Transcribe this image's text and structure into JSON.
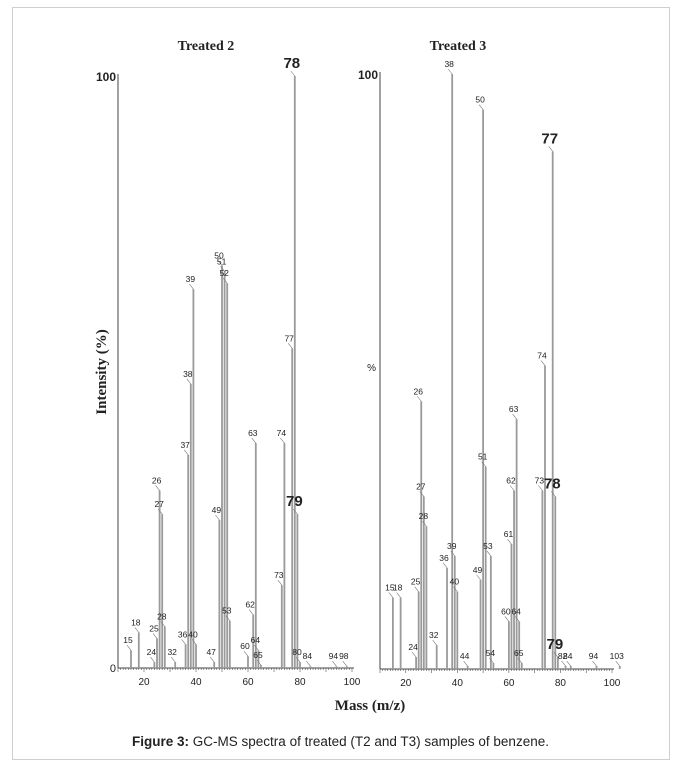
{
  "caption": {
    "prefix": "Figure 3:",
    "text": " GC-MS spectra of treated (T2 and T3) samples of benzene."
  },
  "chart_data": [
    {
      "type": "bar",
      "title": "Treated 2",
      "ylabel": "Intensity (%)",
      "xlabel": "",
      "xlim": [
        10,
        100
      ],
      "ylim": [
        0,
        100
      ],
      "x_ticks": [
        20,
        40,
        60,
        80,
        100
      ],
      "y_tick_labels": [
        "0",
        "100"
      ],
      "peaks": [
        {
          "mz": 15,
          "value": 3,
          "label": "15"
        },
        {
          "mz": 18,
          "value": 6,
          "label": "18"
        },
        {
          "mz": 24,
          "value": 1,
          "label": "24"
        },
        {
          "mz": 25,
          "value": 5,
          "label": "25"
        },
        {
          "mz": 26,
          "value": 30,
          "label": "26"
        },
        {
          "mz": 27,
          "value": 26,
          "label": "27"
        },
        {
          "mz": 28,
          "value": 7,
          "label": "28"
        },
        {
          "mz": 32,
          "value": 1,
          "label": "32"
        },
        {
          "mz": 36,
          "value": 4,
          "label": "36"
        },
        {
          "mz": 37,
          "value": 36,
          "label": "37"
        },
        {
          "mz": 38,
          "value": 48,
          "label": "38"
        },
        {
          "mz": 39,
          "value": 64,
          "label": "39"
        },
        {
          "mz": 40,
          "value": 4,
          "label": "40"
        },
        {
          "mz": 47,
          "value": 1,
          "label": "47"
        },
        {
          "mz": 49,
          "value": 25,
          "label": "49"
        },
        {
          "mz": 50,
          "value": 68,
          "label": "50"
        },
        {
          "mz": 51,
          "value": 67,
          "label": "51"
        },
        {
          "mz": 52,
          "value": 65,
          "label": "52"
        },
        {
          "mz": 53,
          "value": 8,
          "label": "53"
        },
        {
          "mz": 60,
          "value": 2,
          "label": "60"
        },
        {
          "mz": 62,
          "value": 9,
          "label": "62"
        },
        {
          "mz": 63,
          "value": 38,
          "label": "63"
        },
        {
          "mz": 64,
          "value": 3,
          "label": "64"
        },
        {
          "mz": 65,
          "value": 0.5,
          "label": "65"
        },
        {
          "mz": 73,
          "value": 14,
          "label": "73"
        },
        {
          "mz": 74,
          "value": 38,
          "label": "74"
        },
        {
          "mz": 77,
          "value": 54,
          "label": "77"
        },
        {
          "mz": 78,
          "value": 100,
          "label": "78",
          "emphasis": true
        },
        {
          "mz": 79,
          "value": 26,
          "label": "79",
          "emphasis": true
        },
        {
          "mz": 80,
          "value": 1,
          "label": "80"
        },
        {
          "mz": 84,
          "value": 0.3,
          "label": "84"
        },
        {
          "mz": 94,
          "value": 0.3,
          "label": "94"
        },
        {
          "mz": 98,
          "value": 0.3,
          "label": "98"
        }
      ]
    },
    {
      "type": "bar",
      "title": "Treated 3",
      "ylabel": "",
      "xlabel": "Mass (m/z)",
      "xlim": [
        10,
        100
      ],
      "ylim": [
        0,
        100
      ],
      "x_ticks": [
        20,
        40,
        60,
        80,
        100
      ],
      "y_tick_labels": [
        "100",
        "%"
      ],
      "peaks": [
        {
          "mz": 15,
          "value": 12,
          "label": "15"
        },
        {
          "mz": 18,
          "value": 12,
          "label": "18"
        },
        {
          "mz": 24,
          "value": 2,
          "label": "24"
        },
        {
          "mz": 25,
          "value": 13,
          "label": "25"
        },
        {
          "mz": 26,
          "value": 45,
          "label": "26"
        },
        {
          "mz": 27,
          "value": 29,
          "label": "27"
        },
        {
          "mz": 28,
          "value": 24,
          "label": "28"
        },
        {
          "mz": 32,
          "value": 4,
          "label": "32"
        },
        {
          "mz": 36,
          "value": 17,
          "label": "36"
        },
        {
          "mz": 38,
          "value": 100,
          "label": "38"
        },
        {
          "mz": 39,
          "value": 19,
          "label": "39"
        },
        {
          "mz": 40,
          "value": 13,
          "label": "40"
        },
        {
          "mz": 44,
          "value": 0.5,
          "label": "44"
        },
        {
          "mz": 49,
          "value": 15,
          "label": "49"
        },
        {
          "mz": 50,
          "value": 94,
          "label": "50"
        },
        {
          "mz": 51,
          "value": 34,
          "label": "51"
        },
        {
          "mz": 53,
          "value": 19,
          "label": "53"
        },
        {
          "mz": 54,
          "value": 1,
          "label": "54"
        },
        {
          "mz": 60,
          "value": 8,
          "label": "60"
        },
        {
          "mz": 61,
          "value": 21,
          "label": "61"
        },
        {
          "mz": 62,
          "value": 30,
          "label": "62"
        },
        {
          "mz": 63,
          "value": 42,
          "label": "63"
        },
        {
          "mz": 64,
          "value": 8,
          "label": "64"
        },
        {
          "mz": 65,
          "value": 1,
          "label": "65"
        },
        {
          "mz": 73,
          "value": 30,
          "label": "73"
        },
        {
          "mz": 74,
          "value": 51,
          "label": "74"
        },
        {
          "mz": 77,
          "value": 87,
          "label": "77",
          "emphasis": true
        },
        {
          "mz": 78,
          "value": 29,
          "label": "78",
          "emphasis": true
        },
        {
          "mz": 79,
          "value": 2,
          "label": "79",
          "emphasis": true
        },
        {
          "mz": 82,
          "value": 0.5,
          "label": "82"
        },
        {
          "mz": 84,
          "value": 0.5,
          "label": "84"
        },
        {
          "mz": 94,
          "value": 0.5,
          "label": "94"
        },
        {
          "mz": 103,
          "value": 0.5,
          "label": "103"
        }
      ]
    }
  ]
}
